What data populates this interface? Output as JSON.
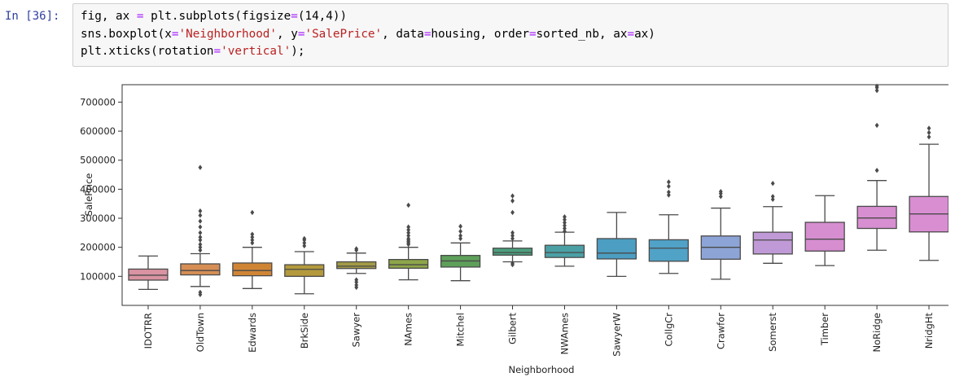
{
  "cell": {
    "prompt": "In [36]:",
    "code_lines": [
      [
        [
          "t",
          "fig, ax "
        ],
        [
          "o",
          "="
        ],
        [
          "t",
          " plt.subplots(figsize"
        ],
        [
          "o",
          "="
        ],
        [
          "t",
          "(14,4))"
        ]
      ],
      [
        [
          "t",
          "sns.boxplot(x"
        ],
        [
          "o",
          "="
        ],
        [
          "s",
          "'Neighborhood'"
        ],
        [
          "t",
          ", y"
        ],
        [
          "o",
          "="
        ],
        [
          "s",
          "'SalePrice'"
        ],
        [
          "t",
          ", data"
        ],
        [
          "o",
          "="
        ],
        [
          "t",
          "housing, order"
        ],
        [
          "o",
          "="
        ],
        [
          "t",
          "sorted_nb, ax"
        ],
        [
          "o",
          "="
        ],
        [
          "t",
          "ax)"
        ]
      ],
      [
        [
          "t",
          "plt.xticks(rotation"
        ],
        [
          "o",
          "="
        ],
        [
          "s",
          "'vertical'"
        ],
        [
          "t",
          ");"
        ]
      ]
    ]
  },
  "chart_data": {
    "type": "box",
    "xlabel": "Neighborhood",
    "ylabel": "SalePrice",
    "ylim": [
      0,
      760000
    ],
    "yticks": [
      100000,
      200000,
      300000,
      400000,
      500000,
      600000,
      700000
    ],
    "xtick_rotation": "vertical",
    "boxes": [
      {
        "name": "IDOTRR",
        "color": "#d993a2",
        "min": 55000,
        "q1": 87000,
        "median": 104000,
        "q3": 125000,
        "max": 170000,
        "fliers": []
      },
      {
        "name": "OldTown",
        "color": "#d68e55",
        "min": 65000,
        "q1": 105000,
        "median": 120000,
        "q3": 143000,
        "max": 178000,
        "fliers": [
          37000,
          45000,
          190000,
          200000,
          210000,
          225000,
          235000,
          250000,
          270000,
          290000,
          310000,
          325000,
          475000
        ]
      },
      {
        "name": "Edwards",
        "color": "#d08535",
        "min": 58000,
        "q1": 102000,
        "median": 120000,
        "q3": 146000,
        "max": 200000,
        "fliers": [
          215000,
          225000,
          235000,
          245000,
          320000
        ]
      },
      {
        "name": "BrkSide",
        "color": "#b49a3c",
        "min": 40000,
        "q1": 100000,
        "median": 124000,
        "q3": 140000,
        "max": 185000,
        "fliers": [
          205000,
          215000,
          225000,
          230000
        ]
      },
      {
        "name": "Sawyer",
        "color": "#a39a46",
        "min": 110000,
        "q1": 127000,
        "median": 135000,
        "q3": 150000,
        "max": 180000,
        "fliers": [
          62000,
          70000,
          80000,
          88000,
          190000,
          195000
        ]
      },
      {
        "name": "NAmes",
        "color": "#8ea548",
        "min": 88000,
        "q1": 128000,
        "median": 140000,
        "q3": 158000,
        "max": 200000,
        "fliers": [
          210000,
          215000,
          220000,
          225000,
          230000,
          240000,
          250000,
          260000,
          270000,
          345000
        ]
      },
      {
        "name": "Mitchel",
        "color": "#5ea05a",
        "min": 85000,
        "q1": 132000,
        "median": 153000,
        "q3": 172000,
        "max": 215000,
        "fliers": [
          230000,
          240000,
          255000,
          272000
        ]
      },
      {
        "name": "Gilbert",
        "color": "#4b9e7e",
        "min": 150000,
        "q1": 173000,
        "median": 182000,
        "q3": 197000,
        "max": 222000,
        "fliers": [
          140000,
          145000,
          230000,
          240000,
          250000,
          320000,
          360000,
          377000
        ]
      },
      {
        "name": "NWAmes",
        "color": "#4ba0a5",
        "min": 135000,
        "q1": 165000,
        "median": 182000,
        "q3": 207000,
        "max": 252000,
        "fliers": [
          255000,
          265000,
          275000,
          285000,
          295000,
          305000
        ]
      },
      {
        "name": "SawyerW",
        "color": "#4c9ec2",
        "min": 100000,
        "q1": 160000,
        "median": 180000,
        "q3": 230000,
        "max": 320000,
        "fliers": []
      },
      {
        "name": "CollgCr",
        "color": "#50a2c6",
        "min": 110000,
        "q1": 152000,
        "median": 197000,
        "q3": 226000,
        "max": 312000,
        "fliers": [
          380000,
          390000,
          410000,
          425000
        ]
      },
      {
        "name": "Crawfor",
        "color": "#8da5d6",
        "min": 90000,
        "q1": 159000,
        "median": 200000,
        "q3": 239000,
        "max": 335000,
        "fliers": [
          375000,
          385000,
          392000
        ]
      },
      {
        "name": "Somerst",
        "color": "#c09ad6",
        "min": 145000,
        "q1": 177000,
        "median": 225000,
        "q3": 252000,
        "max": 340000,
        "fliers": [
          365000,
          375000,
          420000
        ]
      },
      {
        "name": "Timber",
        "color": "#d68ed0",
        "min": 137000,
        "q1": 187000,
        "median": 228000,
        "q3": 286000,
        "max": 378000,
        "fliers": []
      },
      {
        "name": "NoRidge",
        "color": "#d88fd1",
        "min": 190000,
        "q1": 265000,
        "median": 301000,
        "q3": 341000,
        "max": 430000,
        "fliers": [
          465000,
          620000,
          740000,
          750000,
          755000
        ]
      },
      {
        "name": "NridgHt",
        "color": "#da8ed2",
        "min": 155000,
        "q1": 253000,
        "median": 315000,
        "q3": 375000,
        "max": 555000,
        "fliers": [
          580000,
          595000,
          610000
        ]
      }
    ]
  }
}
